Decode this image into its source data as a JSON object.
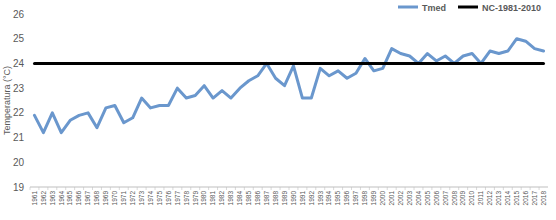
{
  "chart_data": {
    "type": "line",
    "y_label": "Temperatura (°C)",
    "categories": [
      "1961",
      "1962",
      "1963",
      "1964",
      "1965",
      "1966",
      "1967",
      "1968",
      "1969",
      "1970",
      "1971",
      "1972",
      "1973",
      "1974",
      "1975",
      "1976",
      "1977",
      "1978",
      "1979",
      "1980",
      "1981",
      "1982",
      "1983",
      "1984",
      "1985",
      "1986",
      "1987",
      "1988",
      "1989",
      "1990",
      "1991",
      "1992",
      "1993",
      "1994",
      "1995",
      "1996",
      "1997",
      "1998",
      "1999",
      "2000",
      "2001",
      "2002",
      "2003",
      "2004",
      "2005",
      "2006",
      "2007",
      "2008",
      "2009",
      "2010",
      "2011",
      "2012",
      "2013",
      "2014",
      "2015",
      "2016",
      "2017",
      "2018"
    ],
    "series": [
      {
        "name": "Tmed",
        "color": "#6a97cd",
        "values": [
          21.9,
          21.2,
          22.0,
          21.2,
          21.7,
          21.9,
          22.0,
          21.4,
          22.2,
          22.3,
          21.6,
          21.8,
          22.6,
          22.2,
          22.3,
          22.3,
          23.0,
          22.6,
          22.7,
          23.1,
          22.6,
          22.9,
          22.6,
          23.0,
          23.3,
          23.5,
          24.0,
          23.4,
          23.1,
          23.9,
          22.6,
          22.6,
          23.8,
          23.5,
          23.7,
          23.4,
          23.6,
          24.2,
          23.7,
          23.8,
          24.6,
          24.4,
          24.3,
          24.0,
          24.4,
          24.1,
          24.3,
          24.0,
          24.3,
          24.4,
          24.0,
          24.5,
          24.4,
          24.5,
          25.0,
          24.9,
          24.6,
          24.5
        ]
      },
      {
        "name": "NC-1981-2010",
        "color": "#000000",
        "values": [
          24,
          24,
          24,
          24,
          24,
          24,
          24,
          24,
          24,
          24,
          24,
          24,
          24,
          24,
          24,
          24,
          24,
          24,
          24,
          24,
          24,
          24,
          24,
          24,
          24,
          24,
          24,
          24,
          24,
          24,
          24,
          24,
          24,
          24,
          24,
          24,
          24,
          24,
          24,
          24,
          24,
          24,
          24,
          24,
          24,
          24,
          24,
          24,
          24,
          24,
          24,
          24,
          24,
          24,
          24,
          24,
          24,
          24
        ]
      }
    ],
    "ylim": [
      19,
      26
    ],
    "yticks": [
      19,
      20,
      21,
      22,
      23,
      24,
      25,
      26
    ],
    "grid": false,
    "legend": "top-right"
  }
}
